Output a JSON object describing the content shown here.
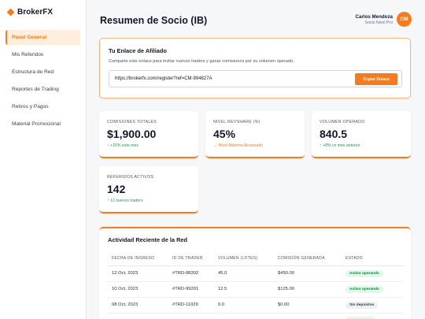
{
  "brand": {
    "name": "BrokerFX",
    "accent": "#f47c20"
  },
  "sidebar": {
    "items": [
      {
        "label": "Panel General",
        "active": true
      },
      {
        "label": "Mis Referidos",
        "active": false
      },
      {
        "label": "Estructura de Red",
        "active": false
      },
      {
        "label": "Reportes de Trading",
        "active": false
      },
      {
        "label": "Retiros y Pagos",
        "active": false
      },
      {
        "label": "Material Promocional",
        "active": false
      }
    ]
  },
  "header": {
    "title": "Resumen de Socio (IB)",
    "user": {
      "name": "Carlos Mendoza",
      "role": "Socio Nivel Pro",
      "initials": "CM"
    }
  },
  "affiliate": {
    "title": "Tu Enlace de Afiliado",
    "description": "Comparte este enlace para invitar nuevos traders y ganar comisiones por su volumen operado.",
    "link": "https://brokerfx.com/register?ref=CM-994827A",
    "copy_label": "Copiar Enlace"
  },
  "stats": [
    {
      "label": "COMISIONES TOTALES",
      "value": "$1,900.00",
      "trend": "↑ +15% este mes",
      "trend_type": "up"
    },
    {
      "label": "NIVEL REVSHARE (%)",
      "value": "45%",
      "trend": "→ Nivel Máximo Alcanzado",
      "trend_type": "flat"
    },
    {
      "label": "VOLUMEN OPERADO",
      "value": "840.5",
      "trend": "↑ +8% vs mes anterior",
      "trend_type": "up"
    },
    {
      "label": "REFERIDOS ACTIVOS",
      "value": "142",
      "trend": "↑ 12 nuevos traders",
      "trend_type": "up"
    }
  ],
  "activity": {
    "title": "Actividad Reciente de la Red",
    "columns": [
      "FECHA DE INGRESO",
      "ID DE TRADER",
      "VOLUMEN (LOTES)",
      "COMISIÓN GENERADA",
      "ESTADO"
    ],
    "rows": [
      {
        "date": "12 Oct, 2023",
        "id": "#TRD-88392",
        "volume": "45.0",
        "commission": "$450.00",
        "status": "Activo operando",
        "status_type": "green"
      },
      {
        "date": "10 Oct, 2023",
        "id": "#TRD-99201",
        "volume": "12.5",
        "commission": "$125.00",
        "status": "Activo operando",
        "status_type": "green"
      },
      {
        "date": "08 Oct, 2023",
        "id": "#TRD-11029",
        "volume": "0.0",
        "commission": "$0.00",
        "status": "Sin depósitos",
        "status_type": "gray"
      },
      {
        "date": "",
        "id": "",
        "volume": "",
        "commission": "",
        "status": "",
        "status_type": "green"
      }
    ]
  }
}
